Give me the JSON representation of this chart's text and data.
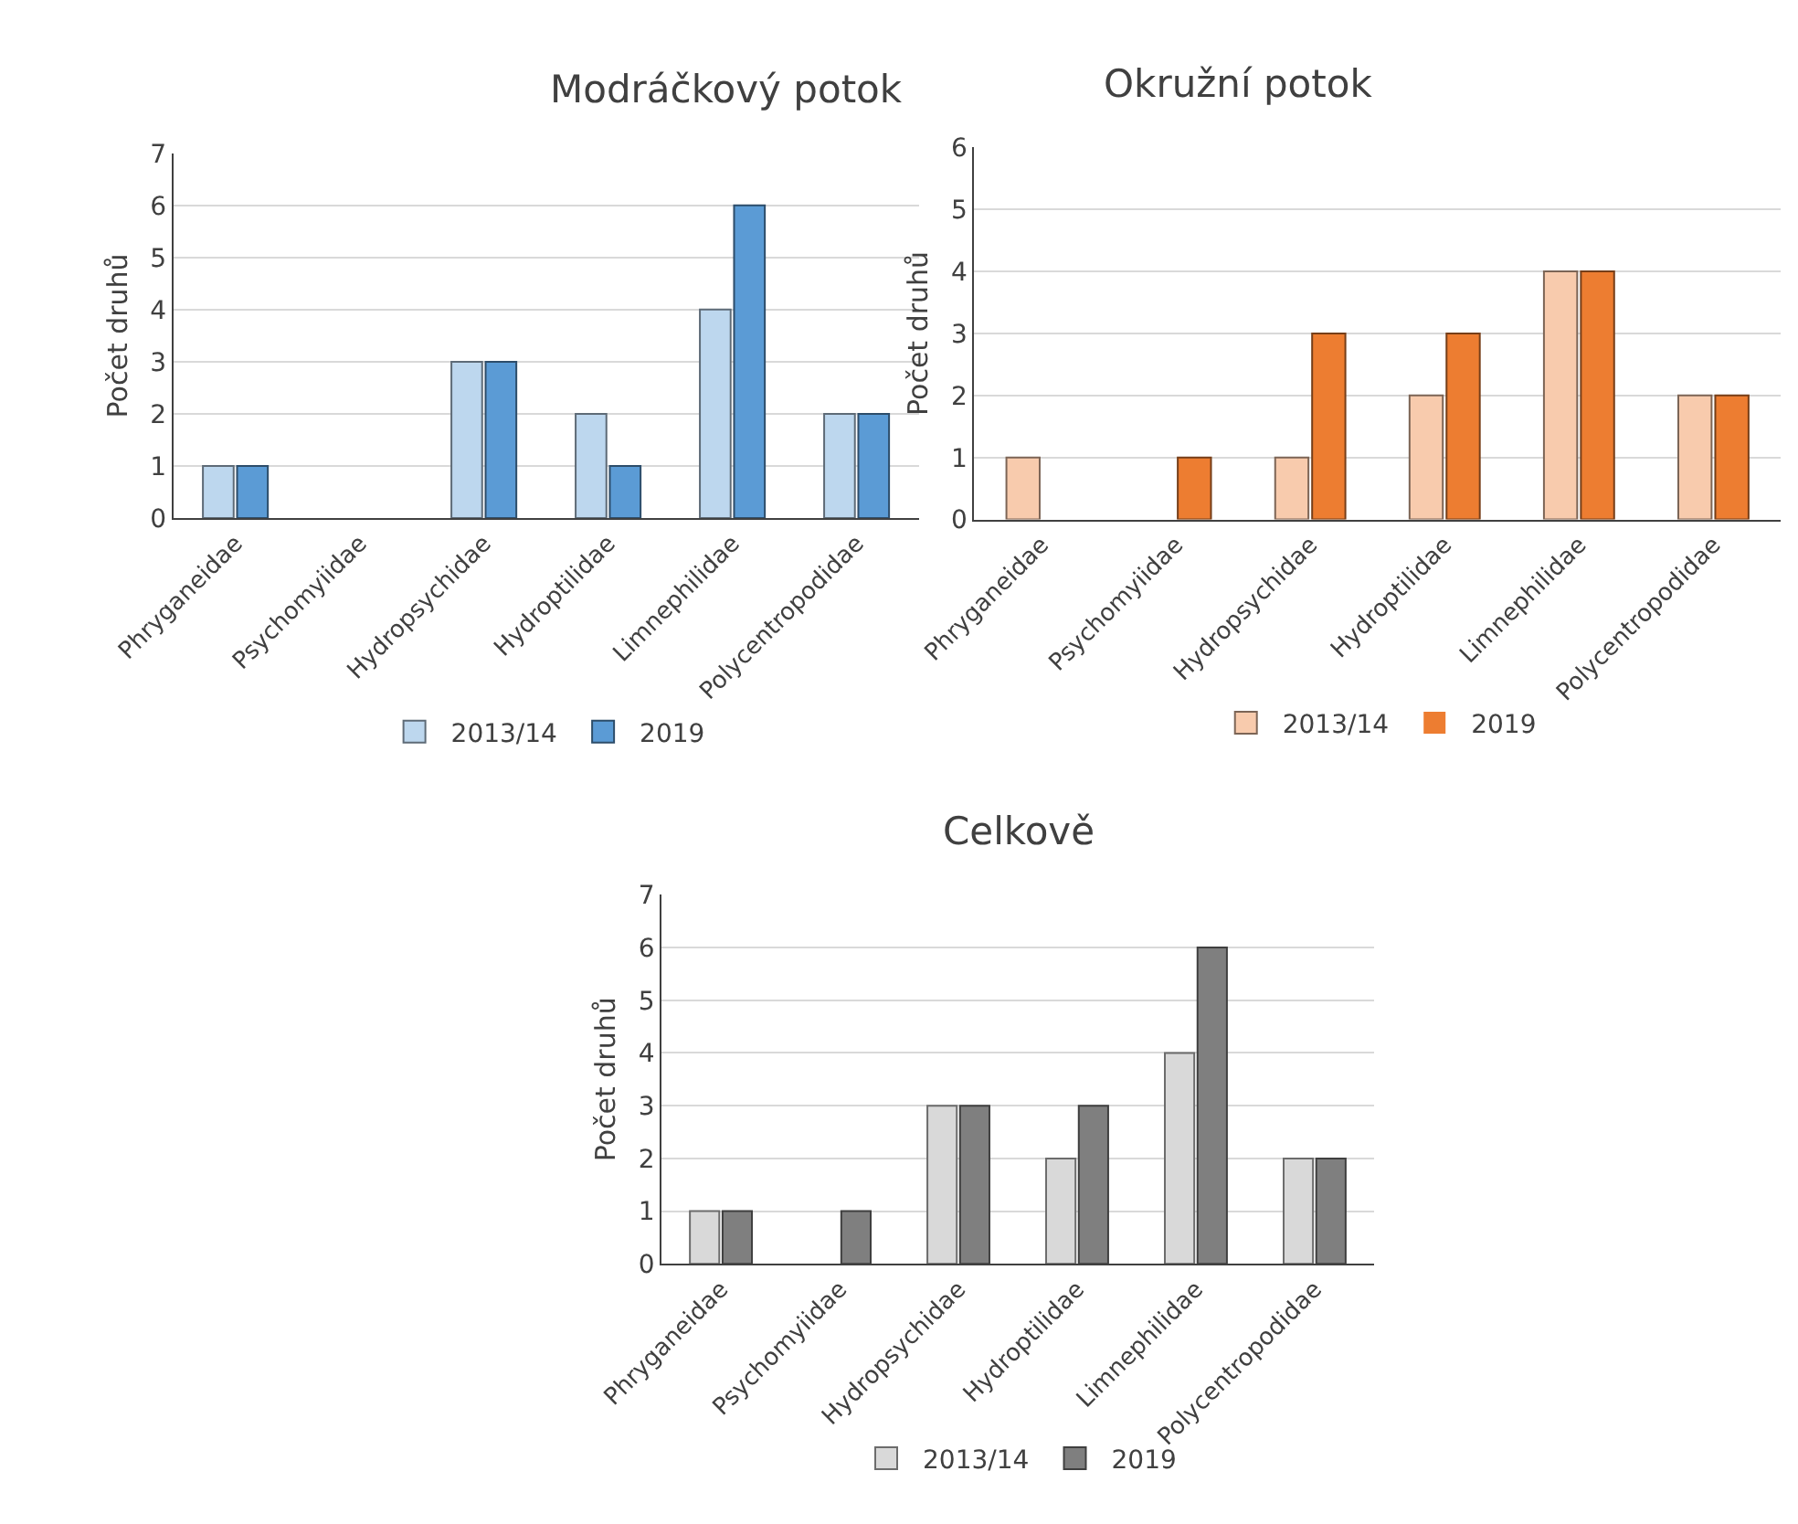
{
  "chart_data": [
    {
      "type": "bar",
      "title": "Modráčkový potok",
      "ylabel": "Počet druhů",
      "categories": [
        "Phryganeidae",
        "Psychomyiidae",
        "Hydropsychidae",
        "Hydroptilidae",
        "Limnephilidae",
        "Polycentropodidae"
      ],
      "series": [
        {
          "name": "2013/14",
          "color": "#bdd7ee",
          "values": [
            1,
            0,
            3,
            2,
            4,
            2
          ]
        },
        {
          "name": "2019",
          "color": "#5b9bd5",
          "values": [
            1,
            0,
            3,
            1,
            6,
            2
          ]
        }
      ],
      "ylim": [
        0,
        7
      ],
      "yticks": [
        0,
        1,
        2,
        3,
        4,
        5,
        6,
        7
      ],
      "grid": "y",
      "legend": "bottom"
    },
    {
      "type": "bar",
      "title": "Okružní potok",
      "ylabel": "Počet druhů",
      "categories": [
        "Phryganeidae",
        "Psychomyiidae",
        "Hydropsychidae",
        "Hydroptilidae",
        "Limnephilidae",
        "Polycentropodidae"
      ],
      "series": [
        {
          "name": "2013/14",
          "color": "#f8cbad",
          "values": [
            1,
            0,
            1,
            2,
            4,
            2
          ]
        },
        {
          "name": "2019",
          "color": "#ed7d31",
          "values": [
            0,
            1,
            3,
            3,
            4,
            2
          ]
        }
      ],
      "ylim": [
        0,
        6
      ],
      "yticks": [
        0,
        1,
        2,
        3,
        4,
        5,
        6
      ],
      "grid": "y",
      "legend": "bottom"
    },
    {
      "type": "bar",
      "title": "Celkově",
      "ylabel": "Počet druhů",
      "categories": [
        "Phryganeidae",
        "Psychomyiidae",
        "Hydropsychidae",
        "Hydroptilidae",
        "Limnephilidae",
        "Polycentropodidae"
      ],
      "series": [
        {
          "name": "2013/14",
          "color": "#d9d9d9",
          "values": [
            1,
            0,
            3,
            2,
            4,
            2
          ]
        },
        {
          "name": "2019",
          "color": "#7f7f7f",
          "values": [
            1,
            1,
            3,
            3,
            6,
            2
          ]
        }
      ],
      "ylim": [
        0,
        7
      ],
      "yticks": [
        0,
        1,
        2,
        3,
        4,
        5,
        6,
        7
      ],
      "grid": "y",
      "legend": "bottom"
    }
  ]
}
